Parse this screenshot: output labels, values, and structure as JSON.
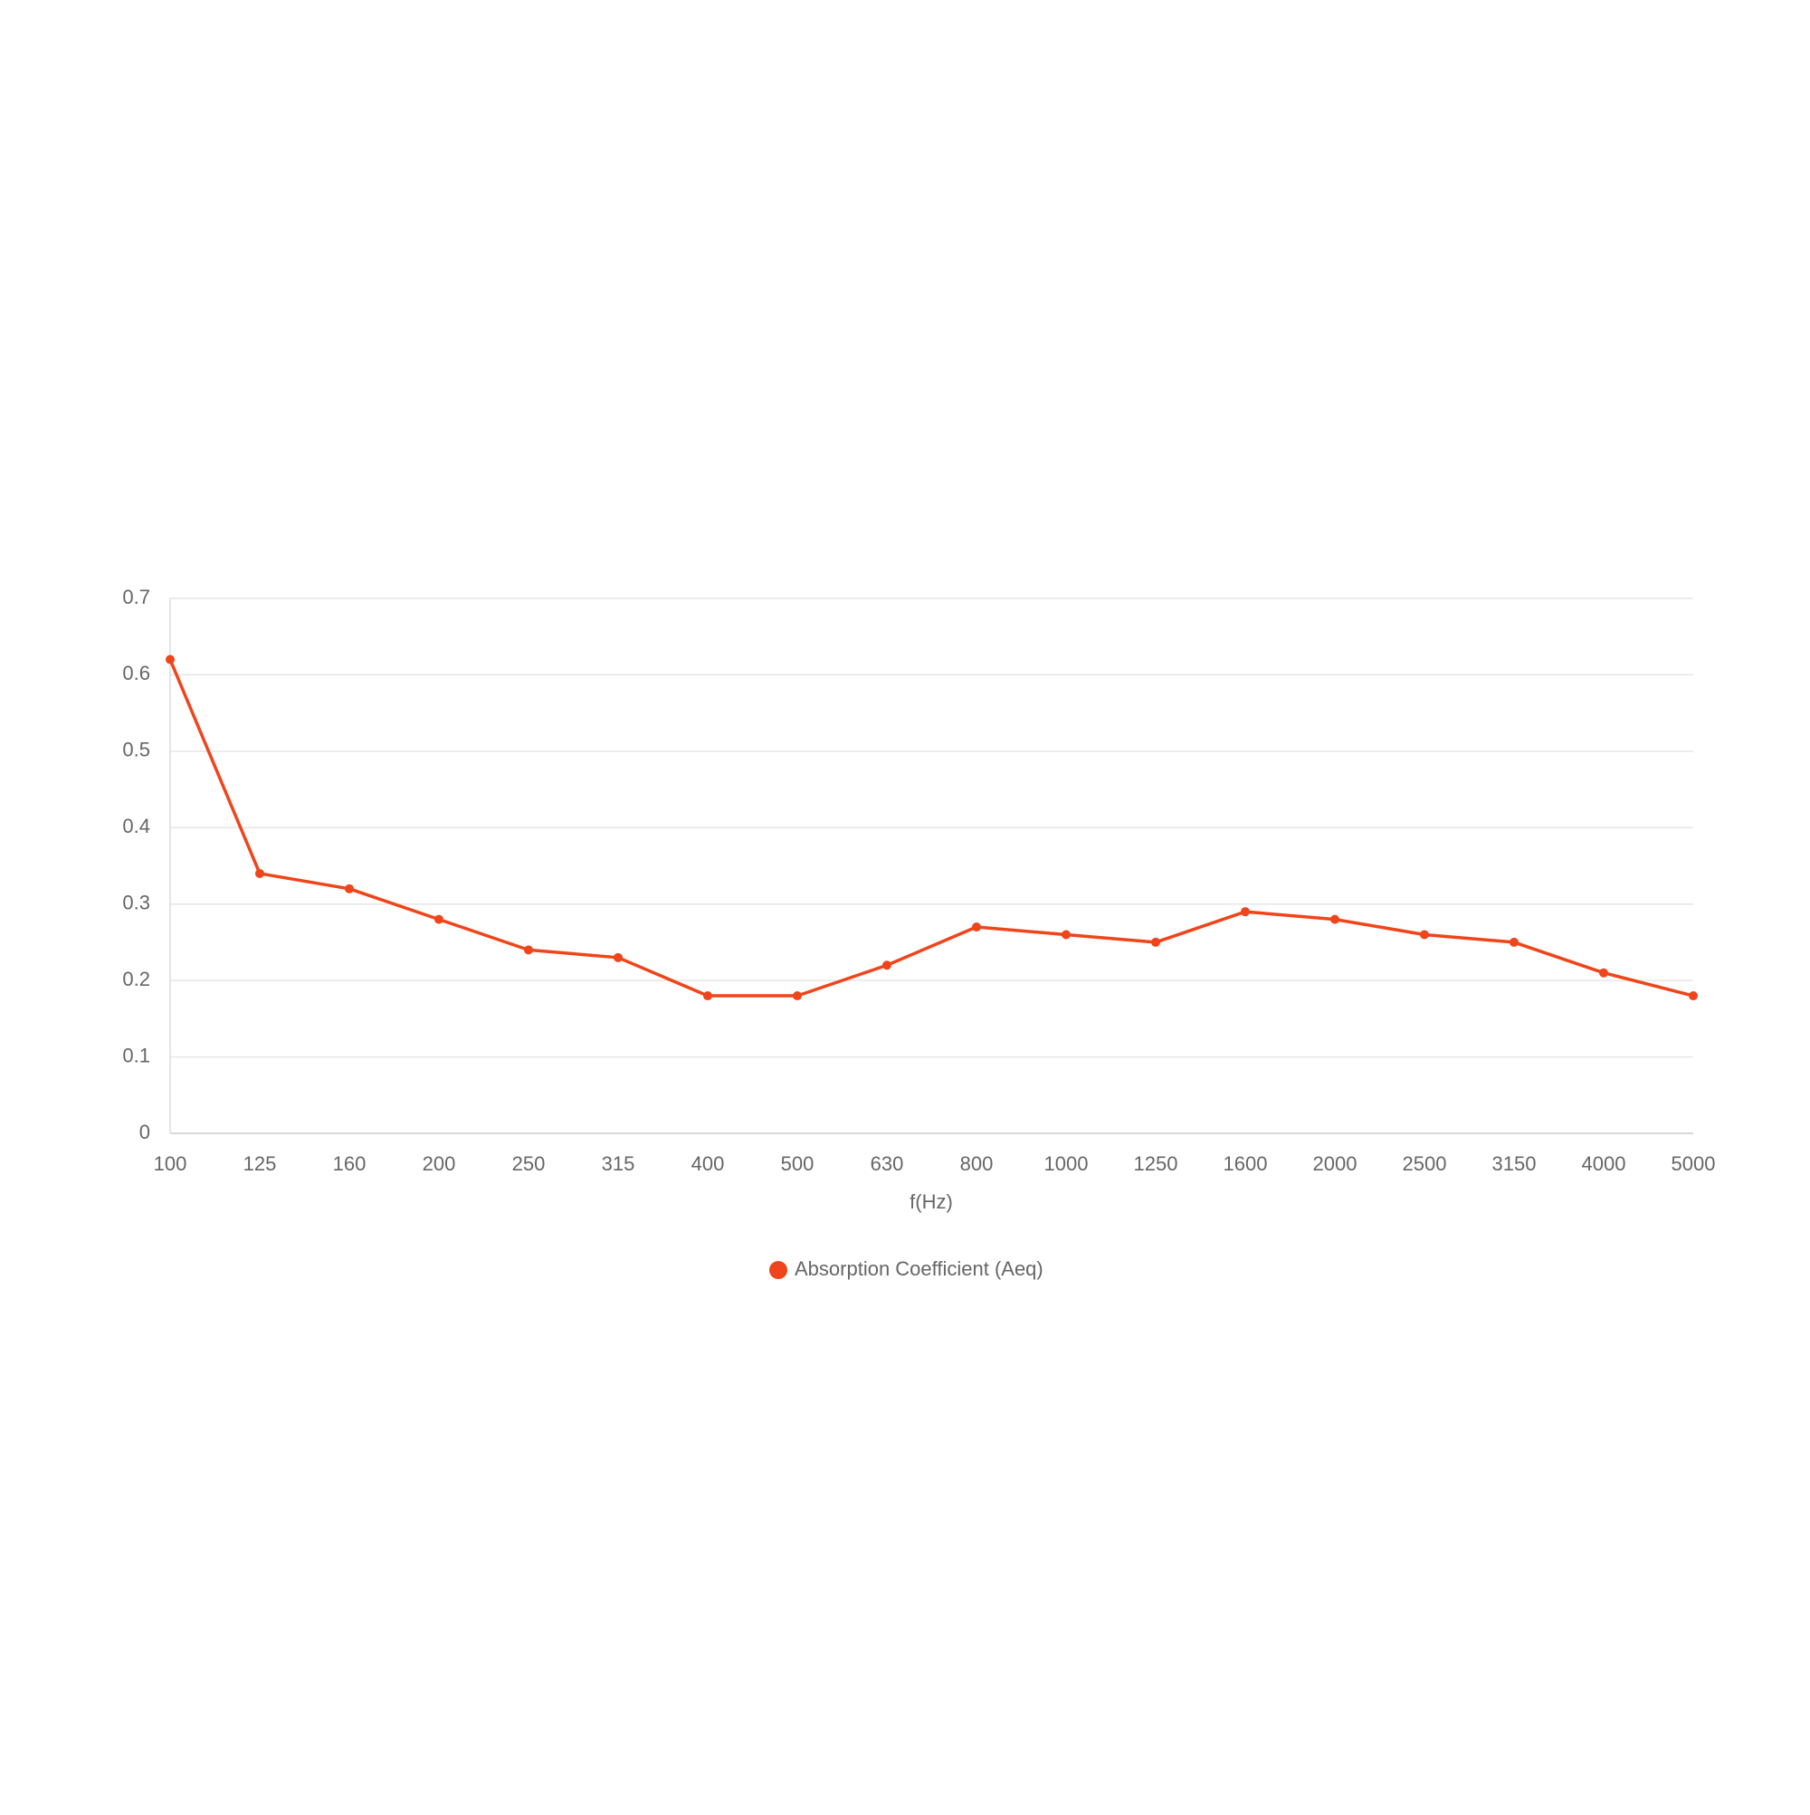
{
  "chart_data": {
    "type": "line",
    "x_label": "f(Hz)",
    "categories": [
      "100",
      "125",
      "160",
      "200",
      "250",
      "315",
      "400",
      "500",
      "630",
      "800",
      "1000",
      "1250",
      "1600",
      "2000",
      "2500",
      "3150",
      "4000",
      "5000"
    ],
    "series": [
      {
        "name": "Absorption Coefficient (Aeq)",
        "color": "#f0441a",
        "values": [
          0.62,
          0.34,
          0.32,
          0.28,
          0.24,
          0.23,
          0.18,
          0.18,
          0.22,
          0.27,
          0.26,
          0.25,
          0.29,
          0.28,
          0.26,
          0.25,
          0.21,
          0.18
        ]
      }
    ],
    "ylim": [
      0,
      0.7
    ],
    "yticks": [
      0,
      0.1,
      0.2,
      0.3,
      0.4,
      0.5,
      0.6,
      0.7
    ],
    "grid": true,
    "legend": "bottom"
  }
}
